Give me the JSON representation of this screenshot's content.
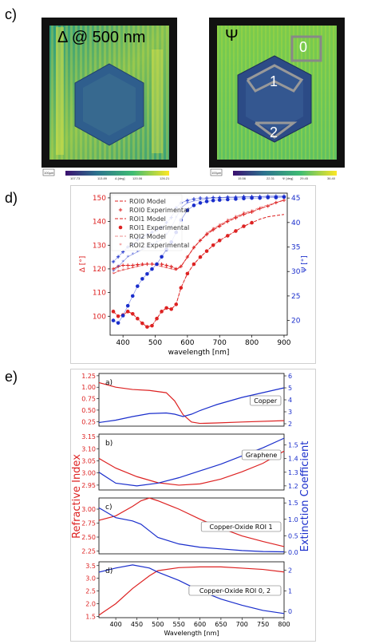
{
  "panels": {
    "c": {
      "letter": "c)",
      "maps": [
        {
          "title": "Δ @ 500 nm",
          "scale_label": "100μm",
          "colorbar_ticks": [
            "107.73",
            "113.89",
            "120.06",
            "126.21"
          ],
          "colorbar_label": "Δ [deg]"
        },
        {
          "title": "Ψ",
          "scale_label": "100μm",
          "colorbar_ticks": [
            "15.56",
            "22.31",
            "29.45",
            "36.40"
          ],
          "colorbar_label": "Ψ [deg]",
          "roi_labels": [
            "0",
            "1",
            "2"
          ]
        }
      ]
    },
    "d": {
      "letter": "d)"
    },
    "e": {
      "letter": "e)"
    }
  },
  "chart_data": [
    {
      "id": "ellipsometry",
      "type": "line",
      "xlabel": "wavelength [nm]",
      "ylabel_left": "Δ [°]",
      "ylabel_right": "Ψ [°]",
      "xlim": [
        360,
        910
      ],
      "ylim_left": [
        92,
        152
      ],
      "ylim_right": [
        17,
        46
      ],
      "xticks": [
        400,
        500,
        600,
        700,
        800,
        900
      ],
      "yticks_left": [
        100,
        110,
        120,
        130,
        140,
        150
      ],
      "yticks_right": [
        20,
        25,
        30,
        35,
        40,
        45
      ],
      "legend": "top-left",
      "colors": {
        "delta": "#dd2222",
        "psi": "#1a2ecc"
      },
      "x": [
        370,
        385,
        400,
        415,
        430,
        445,
        460,
        475,
        490,
        505,
        520,
        535,
        550,
        565,
        580,
        600,
        620,
        640,
        660,
        680,
        700,
        725,
        750,
        775,
        800,
        825,
        850,
        875,
        900
      ],
      "series": [
        {
          "name": "ROI0 Model",
          "axis": "left",
          "style": "dash",
          "values": [
            120,
            121,
            121.5,
            121.5,
            121.5,
            121.8,
            122,
            122,
            122,
            122,
            122,
            121.5,
            121,
            120,
            121,
            125,
            129,
            132,
            134.5,
            136.5,
            138,
            140,
            141.5,
            143,
            144,
            145.5,
            146.5,
            148,
            149
          ]
        },
        {
          "name": "ROI0 Experimental",
          "axis": "left",
          "style": "plus",
          "values": [
            120,
            121,
            121.5,
            121.5,
            121.5,
            121.8,
            122,
            122,
            122,
            122,
            122,
            121.5,
            121,
            120,
            121,
            125,
            129,
            132,
            134.5,
            136.5,
            138,
            140,
            141.5,
            143,
            144,
            145.5,
            146.5,
            148,
            149
          ]
        },
        {
          "name": "ROI1 Model",
          "axis": "left",
          "style": "dash",
          "values": [
            102,
            100,
            100.5,
            102,
            101,
            99,
            97,
            95.5,
            96,
            99,
            102,
            103.5,
            103,
            105,
            112,
            118,
            122,
            125,
            127.5,
            130,
            132,
            134,
            136,
            138,
            139.5,
            141,
            142,
            142.5,
            143
          ]
        },
        {
          "name": "ROI1 Experimental",
          "axis": "left",
          "style": "dot",
          "values": [
            102,
            100,
            100.5,
            102,
            101,
            99,
            97,
            95.5,
            96,
            99,
            102,
            103.5,
            103,
            105,
            112,
            118,
            122,
            125,
            127.5,
            130,
            132,
            134,
            136,
            138,
            139.5,
            null,
            null,
            null,
            null
          ]
        },
        {
          "name": "ROI2 Model",
          "axis": "left",
          "style": "dash",
          "values": [
            118,
            119,
            119.5,
            120,
            120.5,
            121,
            121.5,
            122,
            122,
            121.5,
            121,
            120.5,
            120,
            119.5,
            121,
            125,
            129,
            132,
            135,
            137,
            138.5,
            140.5,
            142,
            143.5,
            144.5,
            146,
            147,
            148,
            149
          ]
        },
        {
          "name": "ROI2 Experimental",
          "axis": "left",
          "style": "star",
          "values": [
            118,
            119,
            119.5,
            120,
            120.5,
            121,
            121.5,
            122,
            122,
            121.5,
            121,
            120.5,
            120,
            119.5,
            121,
            125,
            129,
            132,
            135,
            137,
            138.5,
            140.5,
            142,
            143.5,
            144.5,
            null,
            null,
            null,
            null
          ]
        },
        {
          "name": "",
          "axis": "right",
          "style": "plus",
          "values": [
            32,
            33,
            34,
            35,
            35.5,
            36.5,
            37,
            37.5,
            38,
            38.5,
            39,
            40,
            41,
            43,
            44,
            44.5,
            44.8,
            45,
            45,
            45.1,
            45.1,
            45.2,
            45.2,
            45.3,
            45.3,
            45.3,
            45.4,
            45.4,
            45.4
          ]
        },
        {
          "name": "",
          "axis": "right",
          "style": "star",
          "values": [
            30,
            31,
            32,
            33,
            33.5,
            34,
            34.5,
            35,
            35.5,
            36,
            36.5,
            37.5,
            39,
            41,
            43,
            44,
            44.4,
            44.6,
            44.8,
            45,
            45,
            45.1,
            45.1,
            45.2,
            45.2,
            45.3,
            45.3,
            45.3,
            45.3
          ]
        },
        {
          "name": "",
          "axis": "right",
          "style": "dot",
          "values": [
            20,
            19.5,
            21,
            23,
            25,
            27,
            28.5,
            29.5,
            30.5,
            31.5,
            33,
            34.5,
            36,
            38,
            40.5,
            42.5,
            43.5,
            44,
            44.3,
            44.5,
            44.6,
            44.7,
            44.8,
            44.9,
            45,
            45,
            45.1,
            45.1,
            45.2
          ]
        }
      ]
    },
    {
      "id": "optical-constants",
      "type": "line",
      "xlabel": "Wavelength [nm]",
      "ylabel_left": "Refractive Index",
      "ylabel_right": "Extinction Coefficient",
      "xlim": [
        360,
        800
      ],
      "xticks": [
        400,
        450,
        500,
        550,
        600,
        650,
        700,
        750,
        800
      ],
      "colors": {
        "n": "#dd2222",
        "k": "#1a2ecc"
      },
      "subplots": [
        {
          "letter": "a)",
          "label": "Copper",
          "ylim_left": [
            0.15,
            1.3
          ],
          "yticks_left": [
            "0.25",
            "0.50",
            "0.75",
            "1.00",
            "1.25"
          ],
          "ylim_right": [
            1.8,
            6.2
          ],
          "yticks_right": [
            "2",
            "3",
            "4",
            "5",
            "6"
          ],
          "x": [
            360,
            400,
            440,
            480,
            520,
            540,
            560,
            580,
            600,
            640,
            700,
            800
          ],
          "n": [
            1.1,
            1.0,
            0.95,
            0.93,
            0.88,
            0.7,
            0.4,
            0.24,
            0.21,
            0.22,
            0.24,
            0.27
          ],
          "k": [
            2.1,
            2.3,
            2.6,
            2.85,
            2.9,
            2.8,
            2.6,
            2.8,
            3.1,
            3.6,
            4.2,
            5.0
          ]
        },
        {
          "letter": "b)",
          "label": "Graphene",
          "ylim_left": [
            2.93,
            3.16
          ],
          "yticks_left": [
            "2.95",
            "3.00",
            "3.05",
            "3.10",
            "3.15"
          ],
          "ylim_right": [
            1.17,
            1.58
          ],
          "yticks_right": [
            "1.2",
            "1.3",
            "1.4",
            "1.5"
          ],
          "x": [
            360,
            400,
            450,
            500,
            550,
            600,
            650,
            700,
            750,
            800
          ],
          "n": [
            3.06,
            3.02,
            2.985,
            2.96,
            2.95,
            2.955,
            2.975,
            3.005,
            3.04,
            3.09
          ],
          "k": [
            1.3,
            1.22,
            1.2,
            1.22,
            1.26,
            1.31,
            1.36,
            1.42,
            1.48,
            1.55
          ]
        },
        {
          "letter": "c)",
          "label": "Copper-Oxide ROI 1",
          "ylim_left": [
            2.2,
            3.2
          ],
          "yticks_left": [
            "2.25",
            "2.50",
            "2.75",
            "3.00"
          ],
          "ylim_right": [
            -0.05,
            1.65
          ],
          "yticks_right": [
            "0.0",
            "0.5",
            "1.0",
            "1.5"
          ],
          "x": [
            360,
            400,
            440,
            460,
            480,
            500,
            550,
            600,
            650,
            700,
            750,
            800
          ],
          "n": [
            2.8,
            2.88,
            3.05,
            3.15,
            3.2,
            3.15,
            3.0,
            2.82,
            2.66,
            2.52,
            2.42,
            2.33
          ],
          "k": [
            1.35,
            1.05,
            0.95,
            0.85,
            0.65,
            0.45,
            0.25,
            0.15,
            0.1,
            0.05,
            0.02,
            0.01
          ]
        },
        {
          "letter": "d)",
          "label": "Copper-Oxide ROI 0, 2",
          "ylim_left": [
            1.45,
            3.65
          ],
          "yticks_left": [
            "1.5",
            "2.0",
            "2.5",
            "3.0",
            "3.5"
          ],
          "ylim_right": [
            -0.3,
            2.4
          ],
          "yticks_right": [
            "0",
            "1",
            "2"
          ],
          "x": [
            360,
            400,
            440,
            480,
            500,
            550,
            600,
            650,
            700,
            750,
            800
          ],
          "n": [
            1.55,
            2.0,
            2.6,
            3.1,
            3.3,
            3.42,
            3.45,
            3.45,
            3.4,
            3.35,
            3.25
          ],
          "k": [
            1.9,
            2.1,
            2.25,
            2.1,
            1.9,
            1.5,
            1.0,
            0.6,
            0.3,
            0.05,
            -0.1
          ]
        }
      ]
    }
  ]
}
